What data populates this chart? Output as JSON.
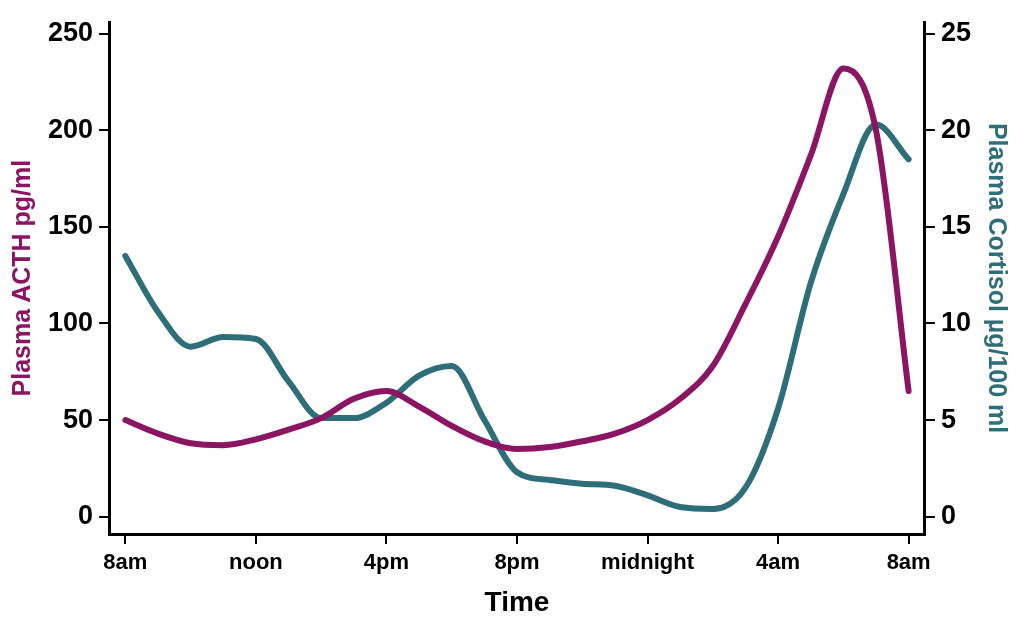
{
  "chart_data": {
    "type": "line",
    "xlabel": "Time",
    "ylabel": "Plasma ACTH pg/ml",
    "y2label": "Plasma Cortisol µg/100 ml",
    "categories": [
      "8am",
      null,
      null,
      null,
      "noon",
      null,
      null,
      null,
      "4pm",
      null,
      null,
      null,
      "8pm",
      null,
      null,
      null,
      "midnight",
      null,
      null,
      null,
      "4am",
      null,
      null,
      null,
      "8am"
    ],
    "ylim": [
      -9,
      256
    ],
    "yticks": [
      0,
      50,
      100,
      150,
      200,
      250
    ],
    "y2lim": [
      -0.9,
      25.6
    ],
    "y2ticks": [
      0,
      5,
      10,
      15,
      20,
      25
    ],
    "grid": false,
    "legend": false,
    "marker": "none",
    "line_style": "solid",
    "series": [
      {
        "color": "#8b1463",
        "values": [
          50,
          43,
          38,
          37,
          40,
          45,
          51,
          61,
          65,
          57,
          47,
          39,
          35,
          36,
          39,
          43,
          50,
          61,
          78,
          110,
          145,
          187,
          232,
          200,
          65
        ]
      },
      {
        "color": "#2d6e78",
        "axis": "y2",
        "values": [
          13.5,
          10.6,
          8.8,
          9.3,
          9.2,
          7,
          5.1,
          5.1,
          5.9,
          7.3,
          7.8,
          5,
          2.3,
          1.9,
          1.7,
          1.6,
          1.1,
          0.5,
          0.4,
          1.5,
          5.6,
          12.1,
          16.7,
          20.3,
          18.5
        ]
      }
    ]
  }
}
